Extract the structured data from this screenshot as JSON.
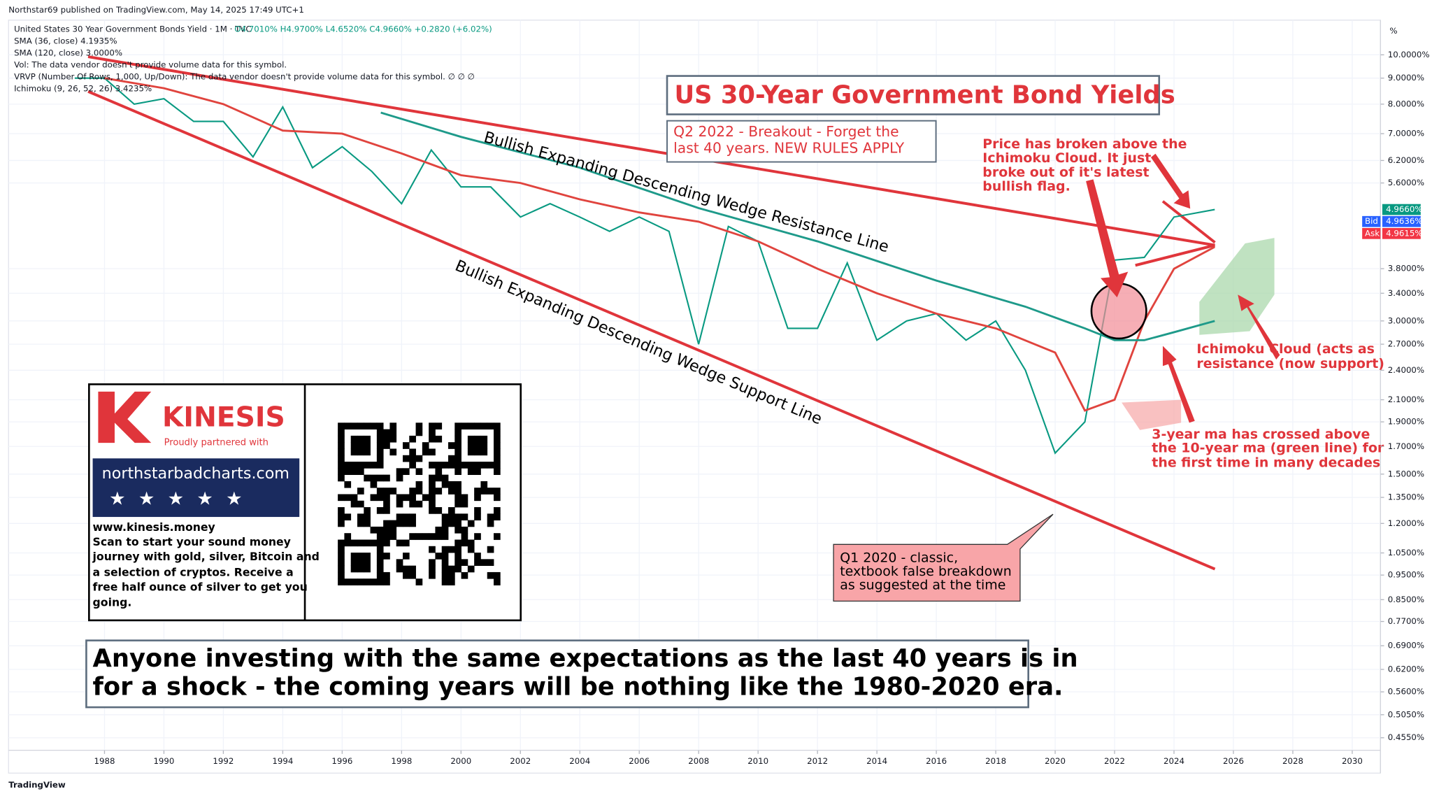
{
  "chart_data": {
    "type": "line",
    "header": "Northstar69 published on TradingView.com, May 14, 2025 17:49 UTC+1",
    "symbol": "United States 30 Year Government Bonds Yield · 1M · TVC",
    "ohlc": "O4.7010%  H4.9700%  L4.6520%  C4.9660%  +0.2820 (+6.02%)",
    "legend_lines": [
      "SMA (36, close)  4.1935%",
      "SMA (120, close)  3.0000%",
      "Vol: The data vendor doesn't provide volume data for this symbol.",
      "VRVP (Number Of Rows, 1,000, Up/Down): The data vendor doesn't provide volume data for this symbol.  ∅ ∅ ∅",
      "Ichimoku (9, 26, 52, 26)  3.4235%"
    ],
    "axis_unit": "%",
    "footer": "TradingView",
    "xlim": [
      1984.77,
      2030.95
    ],
    "xticks": [
      1988,
      1990,
      1992,
      1994,
      1996,
      1998,
      2000,
      2002,
      2004,
      2006,
      2008,
      2010,
      2012,
      2014,
      2016,
      2018,
      2020,
      2022,
      2024,
      2026,
      2028,
      2030
    ],
    "log_y": true,
    "ylim": [
      0.43,
      11.7
    ],
    "yticks": [
      {
        "value": 10,
        "label": "10.0000%"
      },
      {
        "value": 9,
        "label": "9.0000%"
      },
      {
        "value": 8,
        "label": "8.0000%"
      },
      {
        "value": 7,
        "label": "7.0000%"
      },
      {
        "value": 6.2,
        "label": "6.2000%"
      },
      {
        "value": 5.6,
        "label": "5.6000%"
      },
      {
        "value": 3.8,
        "label": "3.8000%"
      },
      {
        "value": 3.4,
        "label": "3.4000%"
      },
      {
        "value": 3,
        "label": "3.0000%"
      },
      {
        "value": 2.7,
        "label": "2.7000%"
      },
      {
        "value": 2.4,
        "label": "2.4000%"
      },
      {
        "value": 2.1,
        "label": "2.1000%"
      },
      {
        "value": 1.9,
        "label": "1.9000%"
      },
      {
        "value": 1.7,
        "label": "1.7000%"
      },
      {
        "value": 1.5,
        "label": "1.5000%"
      },
      {
        "value": 1.35,
        "label": "1.3500%"
      },
      {
        "value": 1.2,
        "label": "1.2000%"
      },
      {
        "value": 1.05,
        "label": "1.0500%"
      },
      {
        "value": 0.95,
        "label": "0.9500%"
      },
      {
        "value": 0.85,
        "label": "0.8500%"
      },
      {
        "value": 0.77,
        "label": "0.7700%"
      },
      {
        "value": 0.69,
        "label": "0.6900%"
      },
      {
        "value": 0.62,
        "label": "0.6200%"
      },
      {
        "value": 0.56,
        "label": "0.5600%"
      },
      {
        "value": 0.505,
        "label": "0.5050%"
      },
      {
        "value": 0.455,
        "label": "0.4550%"
      }
    ],
    "grid": true,
    "series": [
      {
        "name": "United States 30 Year Government Bonds Yield",
        "color": "#089981",
        "x": [
          1987,
          1988,
          1989,
          1990,
          1991,
          1992,
          1993,
          1994,
          1995,
          1996,
          1997,
          1998,
          1999,
          2000,
          2001,
          2002,
          2003,
          2004,
          2005,
          2006,
          2007,
          2008,
          2009,
          2010,
          2011,
          2012,
          2013,
          2014,
          2015,
          2016,
          2017,
          2018,
          2019,
          2020,
          2021,
          2022,
          2023,
          2024,
          2025.37
        ],
        "values": [
          9,
          9,
          8,
          8.2,
          7.4,
          7.4,
          6.3,
          7.9,
          6,
          6.6,
          5.9,
          5.1,
          6.5,
          5.5,
          5.5,
          4.8,
          5.1,
          4.8,
          4.5,
          4.8,
          4.5,
          2.7,
          4.6,
          4.3,
          2.9,
          2.9,
          3.9,
          2.75,
          3,
          3.1,
          2.75,
          3,
          2.4,
          1.65,
          1.9,
          3.95,
          4,
          4.8,
          4.966
        ]
      },
      {
        "name": "SMA (36, close)",
        "color": "#e0443e",
        "x": [
          1988,
          1990,
          1992,
          1994,
          1996,
          1998,
          2000,
          2002,
          2004,
          2006,
          2008,
          2010,
          2012,
          2014,
          2016,
          2018,
          2020,
          2021,
          2022,
          2023,
          2024,
          2025.37
        ],
        "values": [
          9,
          8.6,
          8,
          7.1,
          7,
          6.4,
          5.8,
          5.6,
          5.2,
          4.9,
          4.7,
          4.3,
          3.8,
          3.4,
          3.1,
          2.9,
          2.6,
          2,
          2.1,
          3,
          3.8,
          4.1935
        ]
      },
      {
        "name": "SMA (120, close)",
        "color": "#1e9a8a",
        "x": [
          1997.3,
          2000,
          2004,
          2008,
          2012,
          2016,
          2019,
          2021,
          2022,
          2023,
          2024,
          2025.37
        ],
        "values": [
          7.7,
          6.9,
          6,
          5,
          4.3,
          3.6,
          3.2,
          2.9,
          2.75,
          2.75,
          2.85,
          3
        ]
      }
    ],
    "last_price": {
      "value": 4.966,
      "label": "4.9660%"
    },
    "bid": {
      "tag": "Bid",
      "value": 4.9636,
      "label": "4.9636%"
    },
    "ask": {
      "tag": "Ask",
      "value": 4.9615,
      "label": "4.9615%"
    },
    "annotations": {
      "title": "US 30-Year Government Bond Yields",
      "breakout": [
        "Q2 2022 - Breakout - Forget the",
        "last 40 years. NEW RULES APPLY"
      ],
      "broken": [
        "Price has broken above the",
        "Ichimoku Cloud. It just",
        "broke out of it's latest",
        "bullish flag."
      ],
      "cloud": [
        "Ichimoku Cloud (acts as",
        "resistance (now support)"
      ],
      "ma_cross": [
        "3-year ma has crossed above",
        "the 10-year ma (green line) for",
        "the first time in many decades"
      ],
      "q1": [
        "Q1 2020 - classic,",
        "textbook false breakdown",
        "as suggested at the time"
      ],
      "resistance": "Bullish Expanding Descending Wedge Resistance Line",
      "support": "Bullish Expanding Descending Wedge Support Line",
      "bottom": [
        "Anyone investing with the same expectations as the last 40 years is in",
        "for a shock - the coming years will be nothing like the 1980-2020 era."
      ]
    },
    "ad": {
      "brand": "KINESIS",
      "partner": "Proudly partnered with",
      "site": "northstarbadcharts.com",
      "url": "www.kinesis.money",
      "text": [
        "Scan to start your sound money",
        "journey with gold, silver, Bitcoin and",
        "a selection of cryptos. Receive a",
        "free half ounce of silver to get you",
        "going."
      ]
    }
  }
}
